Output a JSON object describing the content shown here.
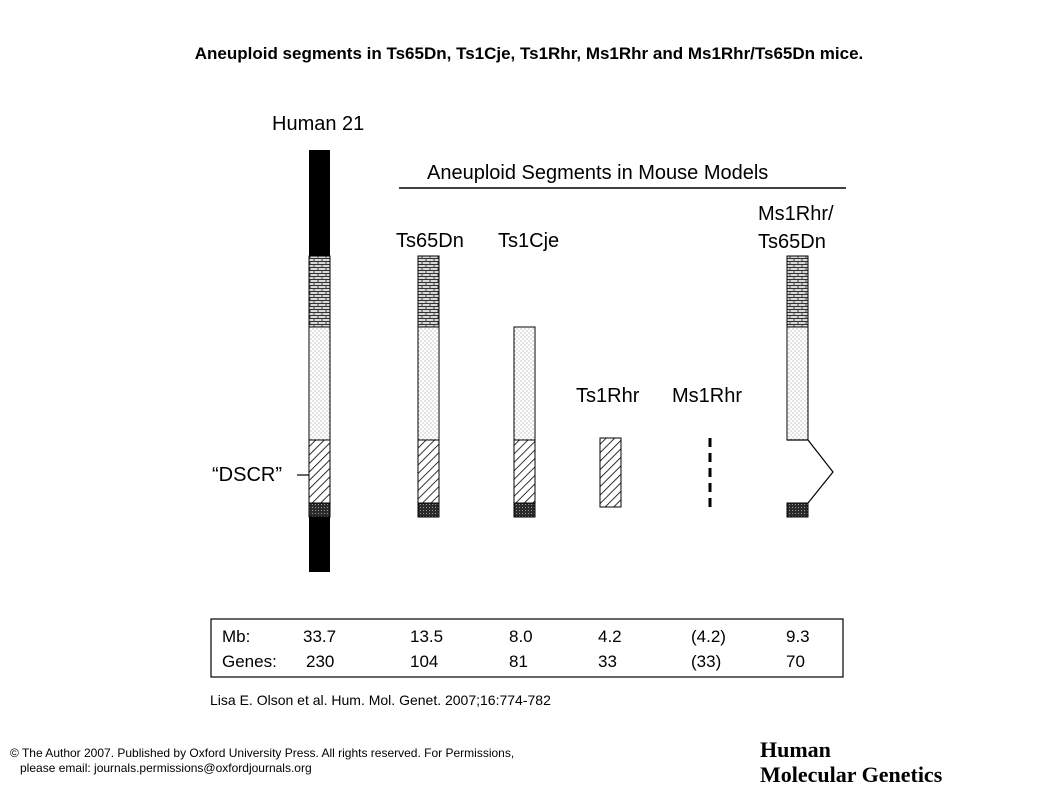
{
  "title": "Aneuploid segments in Ts65Dn, Ts1Cje, Ts1Rhr, Ms1Rhr and Ms1Rhr/Ts65Dn mice.",
  "diagram": {
    "human_label": "Human 21",
    "header": "Aneuploid Segments in Mouse Models",
    "dscr_label": "“DSCR”",
    "models": {
      "ts65dn": "Ts65Dn",
      "ts1cje": "Ts1Cje",
      "ts1rhr": "Ts1Rhr",
      "ms1rhr": "Ms1Rhr",
      "combo_line1": "Ms1Rhr/",
      "combo_line2": "Ts65Dn"
    }
  },
  "table": {
    "row_labels": [
      "Mb:",
      "Genes:"
    ],
    "mb": [
      "33.7",
      "13.5",
      "8.0",
      "4.2",
      "(4.2)",
      "9.3"
    ],
    "genes": [
      "230",
      "104",
      "81",
      "33",
      "(33)",
      "70"
    ]
  },
  "citation": "Lisa E. Olson et al. Hum. Mol. Genet. 2007;16:774-782",
  "copyright": {
    "line1": "© The Author 2007. Published by Oxford University Press. All rights reserved. For Permissions,",
    "line2": "please email: journals.permissions@oxfordjournals.org"
  },
  "journal": {
    "line1": "Human",
    "line2": "Molecular Genetics"
  }
}
